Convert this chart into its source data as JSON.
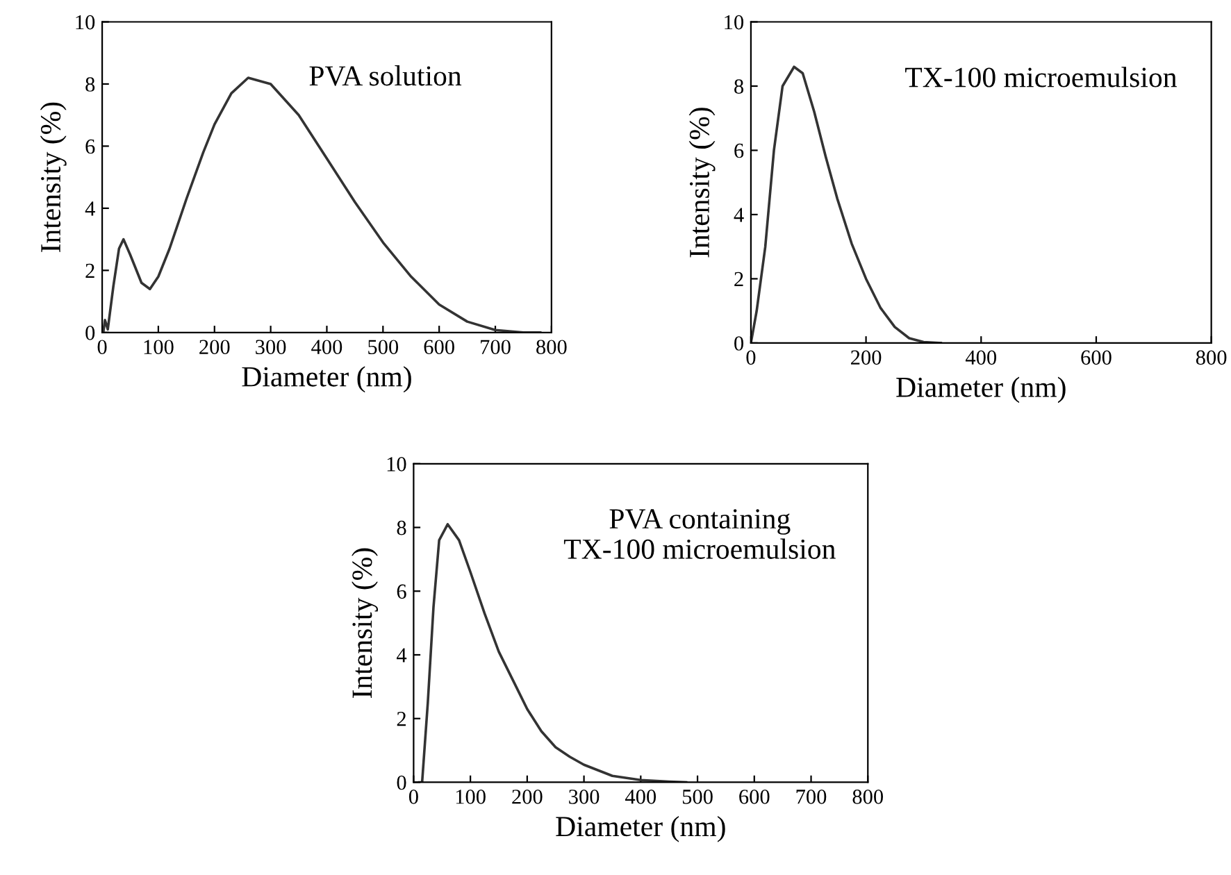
{
  "chart_data": [
    {
      "type": "line",
      "xlabel": "Diameter (nm)",
      "ylabel": "Intensity (%)",
      "annotations": [
        "PVA solution"
      ],
      "xlim": [
        0,
        800
      ],
      "ylim": [
        0,
        10
      ],
      "xticks": [
        0,
        100,
        200,
        300,
        400,
        500,
        600,
        700,
        800
      ],
      "yticks": [
        0,
        2,
        4,
        6,
        8,
        10
      ],
      "grid": false,
      "legend": false,
      "marker": "none",
      "line_style": "solid",
      "series": [
        {
          "color": "#333333",
          "x": [
            2,
            5,
            10,
            20,
            30,
            38,
            50,
            70,
            85,
            100,
            120,
            150,
            180,
            200,
            230,
            260,
            300,
            350,
            400,
            450,
            500,
            550,
            600,
            650,
            700,
            750,
            780
          ],
          "values": [
            0,
            0.4,
            0.1,
            1.5,
            2.7,
            3.0,
            2.5,
            1.6,
            1.4,
            1.8,
            2.7,
            4.3,
            5.8,
            6.7,
            7.7,
            8.2,
            8.0,
            7.0,
            5.6,
            4.2,
            2.9,
            1.8,
            0.9,
            0.35,
            0.08,
            0,
            0
          ]
        }
      ]
    },
    {
      "type": "line",
      "xlabel": "Diameter (nm)",
      "ylabel": "Intensity (%)",
      "annotations": [
        "TX-100 microemulsion"
      ],
      "xlim": [
        0,
        800
      ],
      "ylim": [
        0,
        10
      ],
      "xticks": [
        0,
        200,
        400,
        600,
        800
      ],
      "yticks": [
        0,
        2,
        4,
        6,
        8,
        10
      ],
      "grid": false,
      "legend": false,
      "marker": "none",
      "line_style": "solid",
      "series": [
        {
          "color": "#333333",
          "x": [
            0,
            10,
            25,
            40,
            55,
            75,
            90,
            110,
            130,
            150,
            175,
            200,
            225,
            250,
            275,
            300,
            330
          ],
          "values": [
            0,
            1,
            3,
            6,
            8,
            8.6,
            8.4,
            7.2,
            5.8,
            4.5,
            3.1,
            2.0,
            1.1,
            0.5,
            0.15,
            0.03,
            0
          ]
        }
      ]
    },
    {
      "type": "line",
      "xlabel": "Diameter (nm)",
      "ylabel": "Intensity (%)",
      "annotations": [
        "PVA containing\nTX-100 microemulsion"
      ],
      "xlim": [
        0,
        800
      ],
      "ylim": [
        0,
        10
      ],
      "xticks": [
        0,
        100,
        200,
        300,
        400,
        500,
        600,
        700,
        800
      ],
      "yticks": [
        0,
        2,
        4,
        6,
        8,
        10
      ],
      "grid": false,
      "legend": false,
      "marker": "none",
      "line_style": "solid",
      "series": [
        {
          "color": "#333333",
          "x": [
            10,
            15,
            25,
            35,
            45,
            60,
            80,
            100,
            125,
            150,
            175,
            200,
            225,
            250,
            275,
            300,
            350,
            400,
            450,
            480
          ],
          "values": [
            0,
            0,
            2.5,
            5.5,
            7.6,
            8.1,
            7.6,
            6.6,
            5.3,
            4.1,
            3.2,
            2.3,
            1.6,
            1.1,
            0.8,
            0.55,
            0.2,
            0.07,
            0.02,
            0
          ]
        }
      ]
    }
  ]
}
